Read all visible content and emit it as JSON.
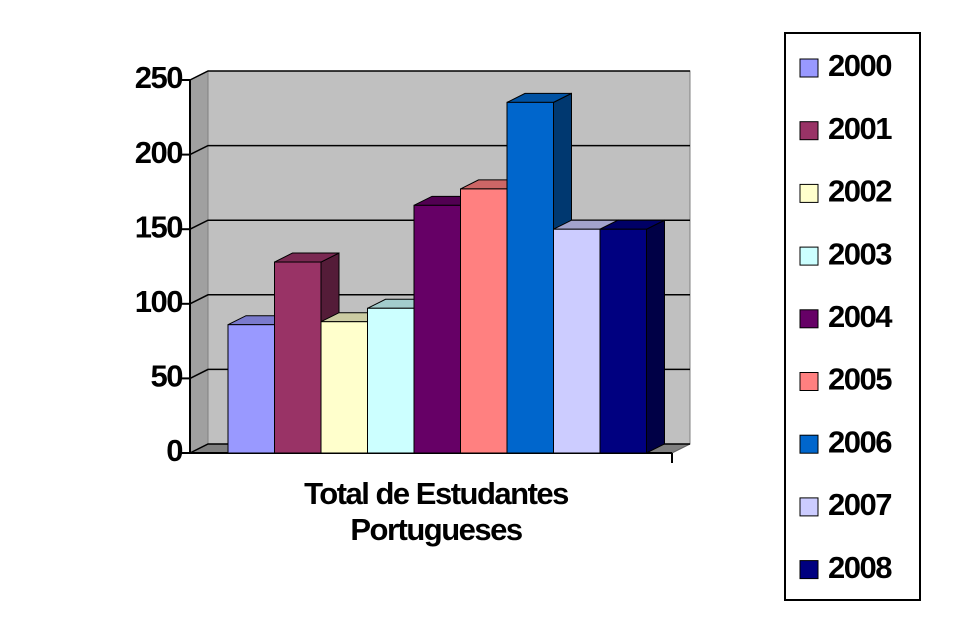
{
  "chart_data": {
    "type": "bar3d",
    "categories": [
      "Total de Estudantes Portugueses"
    ],
    "series": [
      {
        "name": "2000",
        "color": "#9999ff",
        "values": [
          86
        ]
      },
      {
        "name": "2001",
        "color": "#993366",
        "values": [
          128
        ]
      },
      {
        "name": "2002",
        "color": "#ffffcc",
        "values": [
          88
        ]
      },
      {
        "name": "2003",
        "color": "#ccffff",
        "values": [
          97
        ]
      },
      {
        "name": "2004",
        "color": "#660066",
        "values": [
          166
        ]
      },
      {
        "name": "2005",
        "color": "#ff8080",
        "values": [
          177
        ]
      },
      {
        "name": "2006",
        "color": "#0066cc",
        "values": [
          235
        ]
      },
      {
        "name": "2007",
        "color": "#ccccff",
        "values": [
          150
        ]
      },
      {
        "name": "2008",
        "color": "#000080",
        "values": [
          150
        ]
      }
    ],
    "ylim": [
      0,
      250
    ],
    "yticks": [
      0,
      50,
      100,
      150,
      200,
      250
    ],
    "grid": true,
    "legend": "right"
  }
}
